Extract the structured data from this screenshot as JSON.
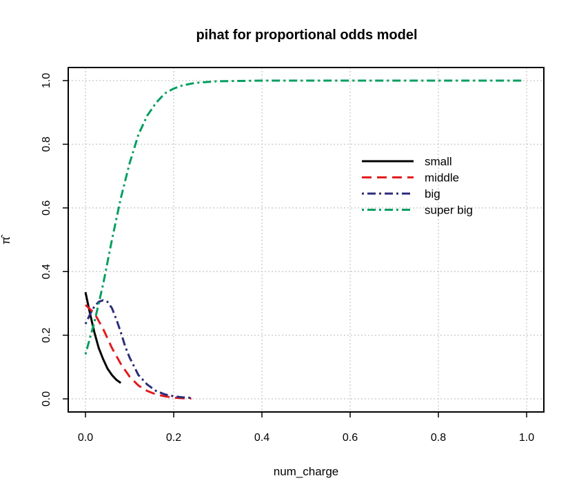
{
  "chart_data": {
    "type": "line",
    "title": "pihat for proportional odds model",
    "xlabel": "num_charge",
    "ylabel": "π̂",
    "xlim": [
      0.0,
      1.0
    ],
    "ylim": [
      0.0,
      1.0
    ],
    "xticks": [
      "0.0",
      "0.2",
      "0.4",
      "0.6",
      "0.8",
      "1.0"
    ],
    "yticks": [
      "0.0",
      "0.2",
      "0.4",
      "0.6",
      "0.8",
      "1.0"
    ],
    "grid": true,
    "legend_position": "right",
    "series": [
      {
        "name": "small",
        "color": "#000000",
        "dash": "solid",
        "x": [
          0.0,
          0.01,
          0.02,
          0.03,
          0.04,
          0.05,
          0.06,
          0.07,
          0.08
        ],
        "y": [
          0.335,
          0.27,
          0.21,
          0.16,
          0.125,
          0.095,
          0.075,
          0.06,
          0.05
        ]
      },
      {
        "name": "middle",
        "color": "#e31a1c",
        "dash": "dashed",
        "x": [
          0.0,
          0.02,
          0.04,
          0.06,
          0.08,
          0.1,
          0.12,
          0.14,
          0.16,
          0.18,
          0.2,
          0.22,
          0.24
        ],
        "y": [
          0.295,
          0.27,
          0.22,
          0.16,
          0.11,
          0.07,
          0.042,
          0.025,
          0.014,
          0.008,
          0.004,
          0.002,
          0.001
        ]
      },
      {
        "name": "big",
        "color": "#2c2c7a",
        "dash": "dotdash",
        "x": [
          0.0,
          0.01,
          0.02,
          0.03,
          0.04,
          0.05,
          0.06,
          0.07,
          0.08,
          0.09,
          0.1,
          0.12,
          0.14,
          0.16,
          0.18,
          0.2,
          0.22,
          0.24
        ],
        "y": [
          0.235,
          0.265,
          0.29,
          0.305,
          0.31,
          0.305,
          0.285,
          0.25,
          0.21,
          0.165,
          0.13,
          0.075,
          0.045,
          0.025,
          0.014,
          0.008,
          0.005,
          0.003
        ]
      },
      {
        "name": "super big",
        "color": "#009e5f",
        "dash": "dotdash",
        "x": [
          0.0,
          0.02,
          0.04,
          0.06,
          0.08,
          0.1,
          0.12,
          0.14,
          0.16,
          0.18,
          0.2,
          0.22,
          0.25,
          0.3,
          0.35,
          0.4,
          0.5,
          0.6,
          0.7,
          0.8,
          0.9,
          0.99
        ],
        "y": [
          0.14,
          0.24,
          0.36,
          0.5,
          0.63,
          0.74,
          0.83,
          0.89,
          0.93,
          0.96,
          0.975,
          0.985,
          0.993,
          0.998,
          0.999,
          1.0,
          1.0,
          1.0,
          1.0,
          1.0,
          1.0,
          1.0
        ]
      }
    ]
  }
}
